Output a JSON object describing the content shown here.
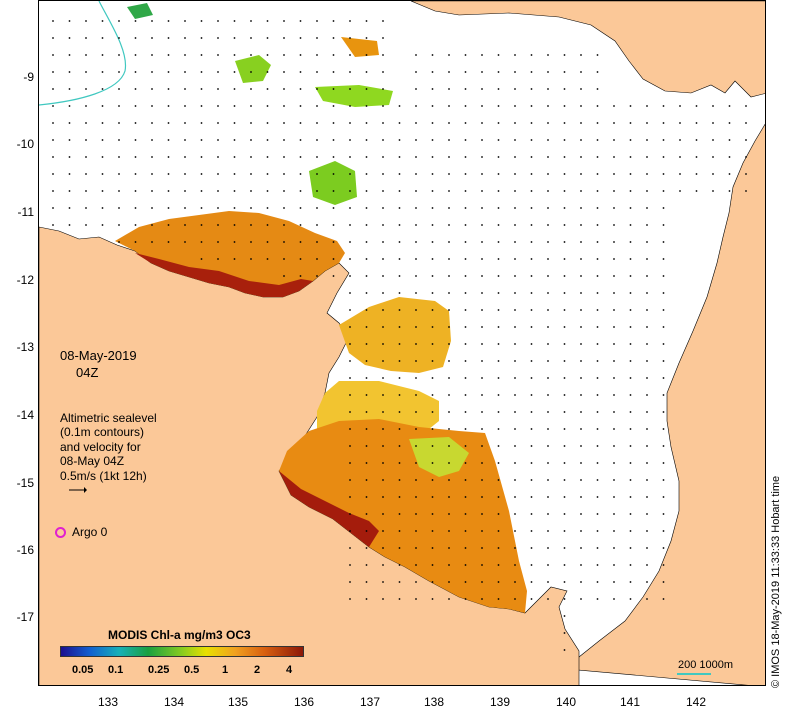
{
  "map": {
    "lon_ticks": [
      "133",
      "134",
      "135",
      "136",
      "137",
      "138",
      "139",
      "140",
      "141",
      "142"
    ],
    "lat_ticks": [
      "-9",
      "-10",
      "-11",
      "-12",
      "-13",
      "-14",
      "-15",
      "-16",
      "-17"
    ],
    "date_label": "08-May-2019",
    "time_label": "04Z",
    "legend_lines": [
      "Altimetric sealevel",
      "(0.1m contours)",
      "and velocity for",
      "08-May 04Z",
      "0.5m/s (1kt 12h)"
    ],
    "argo_label": "Argo 0",
    "colorbar": {
      "title": "MODIS Chl-a mg/m3 OC3",
      "ticks": [
        "0.05",
        "0.1",
        "0.25",
        "0.5",
        "1",
        "2",
        "4"
      ]
    },
    "scale_label": "200  1000m",
    "credit": "© IMOS 18-May-2019 11:33:33 Hobart time",
    "colors": {
      "land": "#fbc898",
      "sea": "#ffffff",
      "chl_high": "#8c1808",
      "chl_mid": "#e07a10",
      "chl_low": "#f2b820",
      "chl_green": "#8fd820",
      "isobath": "#40c8c0",
      "argo": "#e020d0"
    }
  }
}
